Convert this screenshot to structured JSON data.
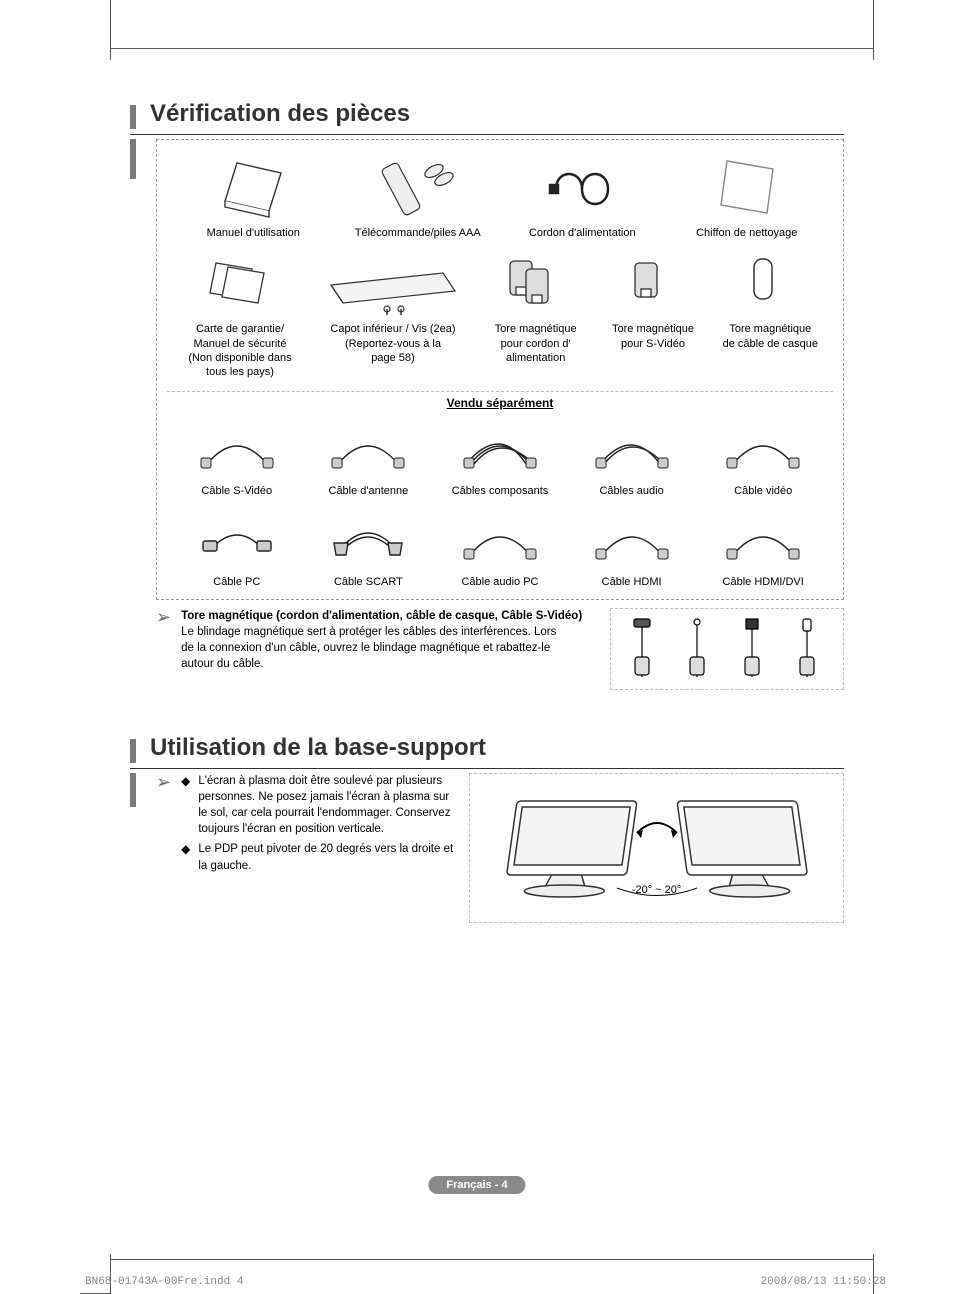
{
  "section1": {
    "title": "Vérification des pièces",
    "row1": [
      {
        "label": "Manuel d'utilisation",
        "icon": "manual"
      },
      {
        "label": "Télécommande/piles AAA",
        "icon": "remote"
      },
      {
        "label": "Cordon d'alimentation",
        "icon": "powercord"
      },
      {
        "label": "Chiffon de nettoyage",
        "icon": "cloth"
      }
    ],
    "row2": [
      {
        "label": "Carte de garantie/\nManuel de sécurité\n(Non disponible dans\ntous les pays)",
        "icon": "cards"
      },
      {
        "label": "Capot inférieur / Vis (2ea)\n(Reportez-vous à la\npage 58)",
        "icon": "cover"
      },
      {
        "label": "Tore magnétique\npour cordon d'\nalimentation",
        "icon": "ferrite2"
      },
      {
        "label": "Tore magnétique\npour S-Vidéo",
        "icon": "ferrite1"
      },
      {
        "label": "Tore magnétique\nde câble de casque",
        "icon": "ferrite-hp"
      }
    ],
    "sold_separately": "Vendu séparément",
    "row3": [
      {
        "label": "Câble S-Vidéo",
        "icon": "cable"
      },
      {
        "label": "Câble d'antenne",
        "icon": "cable"
      },
      {
        "label": "Câbles composants",
        "icon": "cable3"
      },
      {
        "label": "Câbles audio",
        "icon": "cable2"
      },
      {
        "label": "Câble vidéo",
        "icon": "cable"
      }
    ],
    "row4": [
      {
        "label": "Câble PC",
        "icon": "cable-conn"
      },
      {
        "label": "Câble SCART",
        "icon": "cable-scart"
      },
      {
        "label": "Câble audio PC",
        "icon": "cable"
      },
      {
        "label": "Câble HDMI",
        "icon": "cable"
      },
      {
        "label": "Câble HDMI/DVI",
        "icon": "cable"
      }
    ],
    "note_title": "Tore magnétique (cordon d'alimentation, câble de casque, Câble S-Vidéo)",
    "note_body": "Le blindage magnétique sert à protéger les câbles des interférences. Lors de la connexion d'un câble, ouvrez le blindage magnétique et rabattez-le autour du câble."
  },
  "section2": {
    "title": "Utilisation de la base-support",
    "bullets": [
      "L'écran à plasma doit être soulevé par plusieurs personnes. Ne posez jamais l'écran à plasma sur le sol, car cela pourrait l'endommager. Conservez toujours l'écran en position verticale.",
      "Le PDP peut pivoter de 20 degrés vers la droite et la gauche."
    ],
    "angle_label": "-20° ~ 20°"
  },
  "footer": {
    "badge": "Français - 4",
    "left": "BN68-01743A-00Fre.indd   4",
    "right": "2008/08/13   11:50:28"
  },
  "colors": {
    "accent_bar": "#7a7a7a",
    "dash_border": "#999999",
    "text": "#000000",
    "heading": "#333333",
    "badge_bg": "#8a8a8a",
    "badge_fg": "#ffffff",
    "crop": "#555555",
    "footer_text": "#888888"
  }
}
